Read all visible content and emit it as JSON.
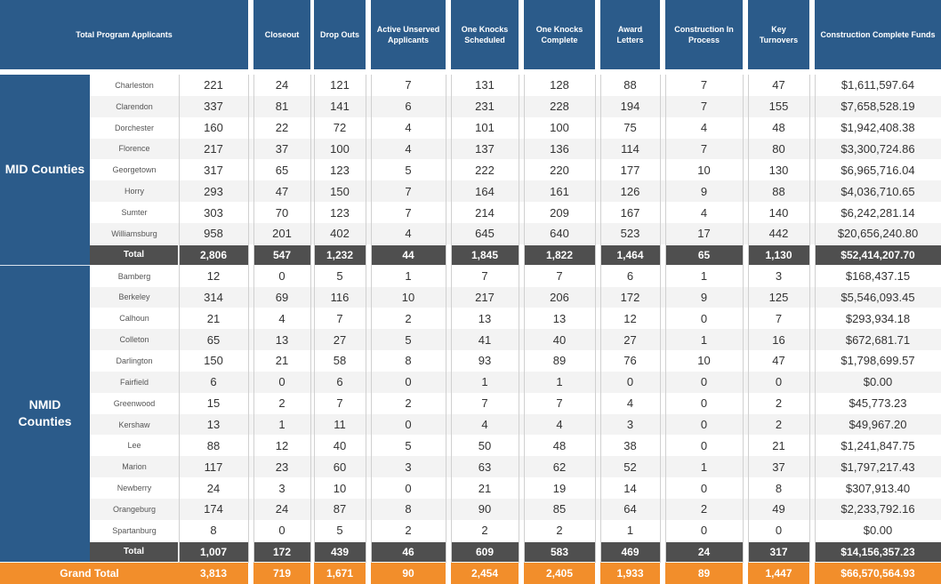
{
  "headers": [
    "Total Program Applicants",
    "Closeout",
    "Drop Outs",
    "Active Unserved Applicants",
    "One Knocks Scheduled",
    "One Knocks Complete",
    "Award Letters",
    "Construction In Process",
    "Key Turnovers",
    "Construction Complete Funds"
  ],
  "groups": [
    {
      "label": "MID Counties",
      "rows": [
        {
          "county": "Charleston",
          "values": [
            "221",
            "24",
            "121",
            "7",
            "131",
            "128",
            "88",
            "7",
            "47",
            "$1,611,597.64"
          ]
        },
        {
          "county": "Clarendon",
          "values": [
            "337",
            "81",
            "141",
            "6",
            "231",
            "228",
            "194",
            "7",
            "155",
            "$7,658,528.19"
          ]
        },
        {
          "county": "Dorchester",
          "values": [
            "160",
            "22",
            "72",
            "4",
            "101",
            "100",
            "75",
            "4",
            "48",
            "$1,942,408.38"
          ]
        },
        {
          "county": "Florence",
          "values": [
            "217",
            "37",
            "100",
            "4",
            "137",
            "136",
            "114",
            "7",
            "80",
            "$3,300,724.86"
          ]
        },
        {
          "county": "Georgetown",
          "values": [
            "317",
            "65",
            "123",
            "5",
            "222",
            "220",
            "177",
            "10",
            "130",
            "$6,965,716.04"
          ]
        },
        {
          "county": "Horry",
          "values": [
            "293",
            "47",
            "150",
            "7",
            "164",
            "161",
            "126",
            "9",
            "88",
            "$4,036,710.65"
          ]
        },
        {
          "county": "Sumter",
          "values": [
            "303",
            "70",
            "123",
            "7",
            "214",
            "209",
            "167",
            "4",
            "140",
            "$6,242,281.14"
          ]
        },
        {
          "county": "Williamsburg",
          "values": [
            "958",
            "201",
            "402",
            "4",
            "645",
            "640",
            "523",
            "17",
            "442",
            "$20,656,240.80"
          ]
        }
      ],
      "total": {
        "label": "Total",
        "values": [
          "2,806",
          "547",
          "1,232",
          "44",
          "1,845",
          "1,822",
          "1,464",
          "65",
          "1,130",
          "$52,414,207.70"
        ]
      }
    },
    {
      "label": "NMID Counties",
      "rows": [
        {
          "county": "Bamberg",
          "values": [
            "12",
            "0",
            "5",
            "1",
            "7",
            "7",
            "6",
            "1",
            "3",
            "$168,437.15"
          ]
        },
        {
          "county": "Berkeley",
          "values": [
            "314",
            "69",
            "116",
            "10",
            "217",
            "206",
            "172",
            "9",
            "125",
            "$5,546,093.45"
          ]
        },
        {
          "county": "Calhoun",
          "values": [
            "21",
            "4",
            "7",
            "2",
            "13",
            "13",
            "12",
            "0",
            "7",
            "$293,934.18"
          ]
        },
        {
          "county": "Colleton",
          "values": [
            "65",
            "13",
            "27",
            "5",
            "41",
            "40",
            "27",
            "1",
            "16",
            "$672,681.71"
          ]
        },
        {
          "county": "Darlington",
          "values": [
            "150",
            "21",
            "58",
            "8",
            "93",
            "89",
            "76",
            "10",
            "47",
            "$1,798,699.57"
          ]
        },
        {
          "county": "Fairfield",
          "values": [
            "6",
            "0",
            "6",
            "0",
            "1",
            "1",
            "0",
            "0",
            "0",
            "$0.00"
          ]
        },
        {
          "county": "Greenwood",
          "values": [
            "15",
            "2",
            "7",
            "2",
            "7",
            "7",
            "4",
            "0",
            "2",
            "$45,773.23"
          ]
        },
        {
          "county": "Kershaw",
          "values": [
            "13",
            "1",
            "11",
            "0",
            "4",
            "4",
            "3",
            "0",
            "2",
            "$49,967.20"
          ]
        },
        {
          "county": "Lee",
          "values": [
            "88",
            "12",
            "40",
            "5",
            "50",
            "48",
            "38",
            "0",
            "21",
            "$1,241,847.75"
          ]
        },
        {
          "county": "Marion",
          "values": [
            "117",
            "23",
            "60",
            "3",
            "63",
            "62",
            "52",
            "1",
            "37",
            "$1,797,217.43"
          ]
        },
        {
          "county": "Newberry",
          "values": [
            "24",
            "3",
            "10",
            "0",
            "21",
            "19",
            "14",
            "0",
            "8",
            "$307,913.40"
          ]
        },
        {
          "county": "Orangeburg",
          "values": [
            "174",
            "24",
            "87",
            "8",
            "90",
            "85",
            "64",
            "2",
            "49",
            "$2,233,792.16"
          ]
        },
        {
          "county": "Spartanburg",
          "values": [
            "8",
            "0",
            "5",
            "2",
            "2",
            "2",
            "1",
            "0",
            "0",
            "$0.00"
          ]
        }
      ],
      "total": {
        "label": "Total",
        "values": [
          "1,007",
          "172",
          "439",
          "46",
          "609",
          "583",
          "469",
          "24",
          "317",
          "$14,156,357.23"
        ]
      }
    }
  ],
  "grand_total": {
    "label": "Grand Total",
    "values": [
      "3,813",
      "719",
      "1,671",
      "90",
      "2,454",
      "2,405",
      "1,933",
      "89",
      "1,447",
      "$66,570,564.93"
    ]
  },
  "colors": {
    "header_bg": "#2b5b8a",
    "total_bg": "#4f4f4f",
    "grand_total_bg": "#f28e2b",
    "row_alt": "#f3f3f3",
    "row_plain": "#ffffff"
  }
}
